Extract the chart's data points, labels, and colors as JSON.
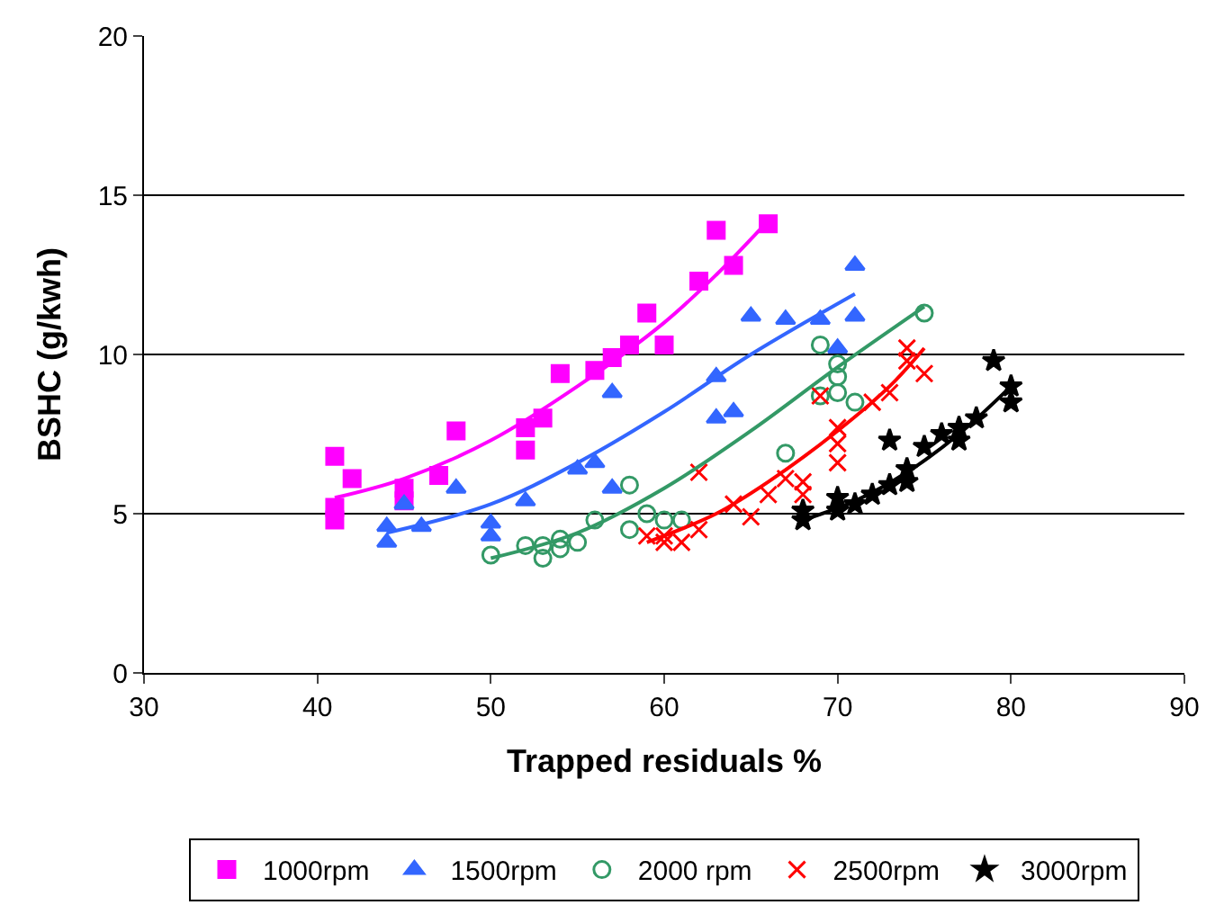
{
  "chart_data": {
    "type": "scatter",
    "xlabel": "Trapped residuals %",
    "ylabel": "BSHC (g/kwh)",
    "xlim": [
      30,
      90
    ],
    "xticks": [
      30,
      40,
      50,
      60,
      70,
      80,
      90
    ],
    "ylim": [
      0,
      20
    ],
    "yticks": [
      0,
      5,
      10,
      15,
      20
    ],
    "grid": "y",
    "legend": "bottom",
    "series": [
      {
        "name": "1000rpm",
        "color": "#ff00ff",
        "marker": "square",
        "x": [
          41,
          41,
          41,
          42,
          45,
          45,
          47,
          48,
          52,
          52,
          53,
          54,
          56,
          57,
          58,
          59,
          60,
          62,
          63,
          64,
          66
        ],
        "values": [
          6.8,
          5.2,
          4.8,
          6.1,
          5.8,
          5.4,
          6.2,
          7.6,
          7.7,
          7.0,
          8.0,
          9.4,
          9.5,
          9.9,
          10.3,
          11.3,
          10.3,
          12.3,
          13.9,
          12.8,
          14.1
        ]
      },
      {
        "name": "1500rpm",
        "color": "#3366ff",
        "marker": "triangle",
        "x": [
          44,
          44,
          45,
          46,
          48,
          50,
          50,
          52,
          55,
          56,
          57,
          57,
          63,
          63,
          64,
          65,
          67,
          69,
          70,
          71,
          71
        ],
        "values": [
          4.6,
          4.1,
          5.3,
          4.6,
          5.8,
          4.7,
          4.3,
          5.4,
          6.4,
          6.6,
          8.8,
          5.8,
          9.3,
          8.0,
          8.2,
          11.2,
          11.1,
          11.1,
          10.2,
          12.8,
          11.2
        ]
      },
      {
        "name": "2000 rpm",
        "color": "#339966",
        "marker": "circle",
        "x": [
          50,
          52,
          53,
          53,
          54,
          54,
          55,
          56,
          58,
          58,
          59,
          60,
          61,
          67,
          69,
          69,
          70,
          70,
          70,
          71,
          75
        ],
        "values": [
          3.7,
          4.0,
          4.0,
          3.6,
          4.2,
          3.9,
          4.1,
          4.8,
          5.9,
          4.5,
          5.0,
          4.8,
          4.8,
          6.9,
          10.3,
          8.7,
          9.7,
          9.3,
          8.8,
          8.5,
          11.3
        ]
      },
      {
        "name": "2500rpm",
        "color": "#ff0000",
        "marker": "cross",
        "x": [
          59,
          60,
          60,
          61,
          62,
          62,
          64,
          65,
          66,
          67,
          68,
          68,
          69,
          70,
          70,
          70,
          72,
          73,
          74,
          74,
          75
        ],
        "values": [
          4.3,
          4.1,
          4.3,
          4.1,
          4.5,
          6.3,
          5.3,
          4.9,
          5.6,
          6.1,
          5.6,
          6.0,
          8.7,
          7.2,
          6.6,
          7.7,
          8.5,
          8.8,
          10.2,
          9.8,
          9.4
        ]
      },
      {
        "name": "3000rpm",
        "color": "#000000",
        "marker": "star",
        "x": [
          68,
          68,
          70,
          70,
          71,
          72,
          73,
          73,
          74,
          74,
          75,
          76,
          77,
          77,
          78,
          79,
          80,
          80
        ],
        "values": [
          4.8,
          5.1,
          5.5,
          5.1,
          5.3,
          5.6,
          5.9,
          7.3,
          6.0,
          6.4,
          7.1,
          7.5,
          7.3,
          7.7,
          8.0,
          9.8,
          9.0,
          8.5
        ]
      },
      {
        "type": "line",
        "color": "#ff00ff",
        "marker": "none",
        "x": [
          41,
          45,
          50,
          55,
          60,
          63,
          66
        ],
        "values": [
          5.5,
          6.1,
          7.3,
          9.0,
          11.0,
          12.5,
          14.2
        ]
      },
      {
        "type": "line",
        "color": "#3366ff",
        "marker": "none",
        "x": [
          44,
          50,
          55,
          60,
          65,
          71
        ],
        "values": [
          4.4,
          5.3,
          6.6,
          8.2,
          10.0,
          11.9
        ]
      },
      {
        "type": "line",
        "color": "#339966",
        "marker": "none",
        "x": [
          50,
          55,
          60,
          65,
          70,
          75
        ],
        "values": [
          3.6,
          4.4,
          5.8,
          7.6,
          9.6,
          11.5
        ]
      },
      {
        "type": "line",
        "color": "#ff0000",
        "marker": "none",
        "x": [
          59,
          63,
          66,
          70,
          73,
          75
        ],
        "values": [
          4.1,
          5.0,
          6.0,
          7.6,
          9.0,
          10.2
        ]
      },
      {
        "type": "line",
        "color": "#000000",
        "marker": "none",
        "x": [
          68,
          71,
          74,
          77,
          80
        ],
        "values": [
          4.8,
          5.4,
          6.3,
          7.5,
          9.0
        ]
      }
    ]
  }
}
